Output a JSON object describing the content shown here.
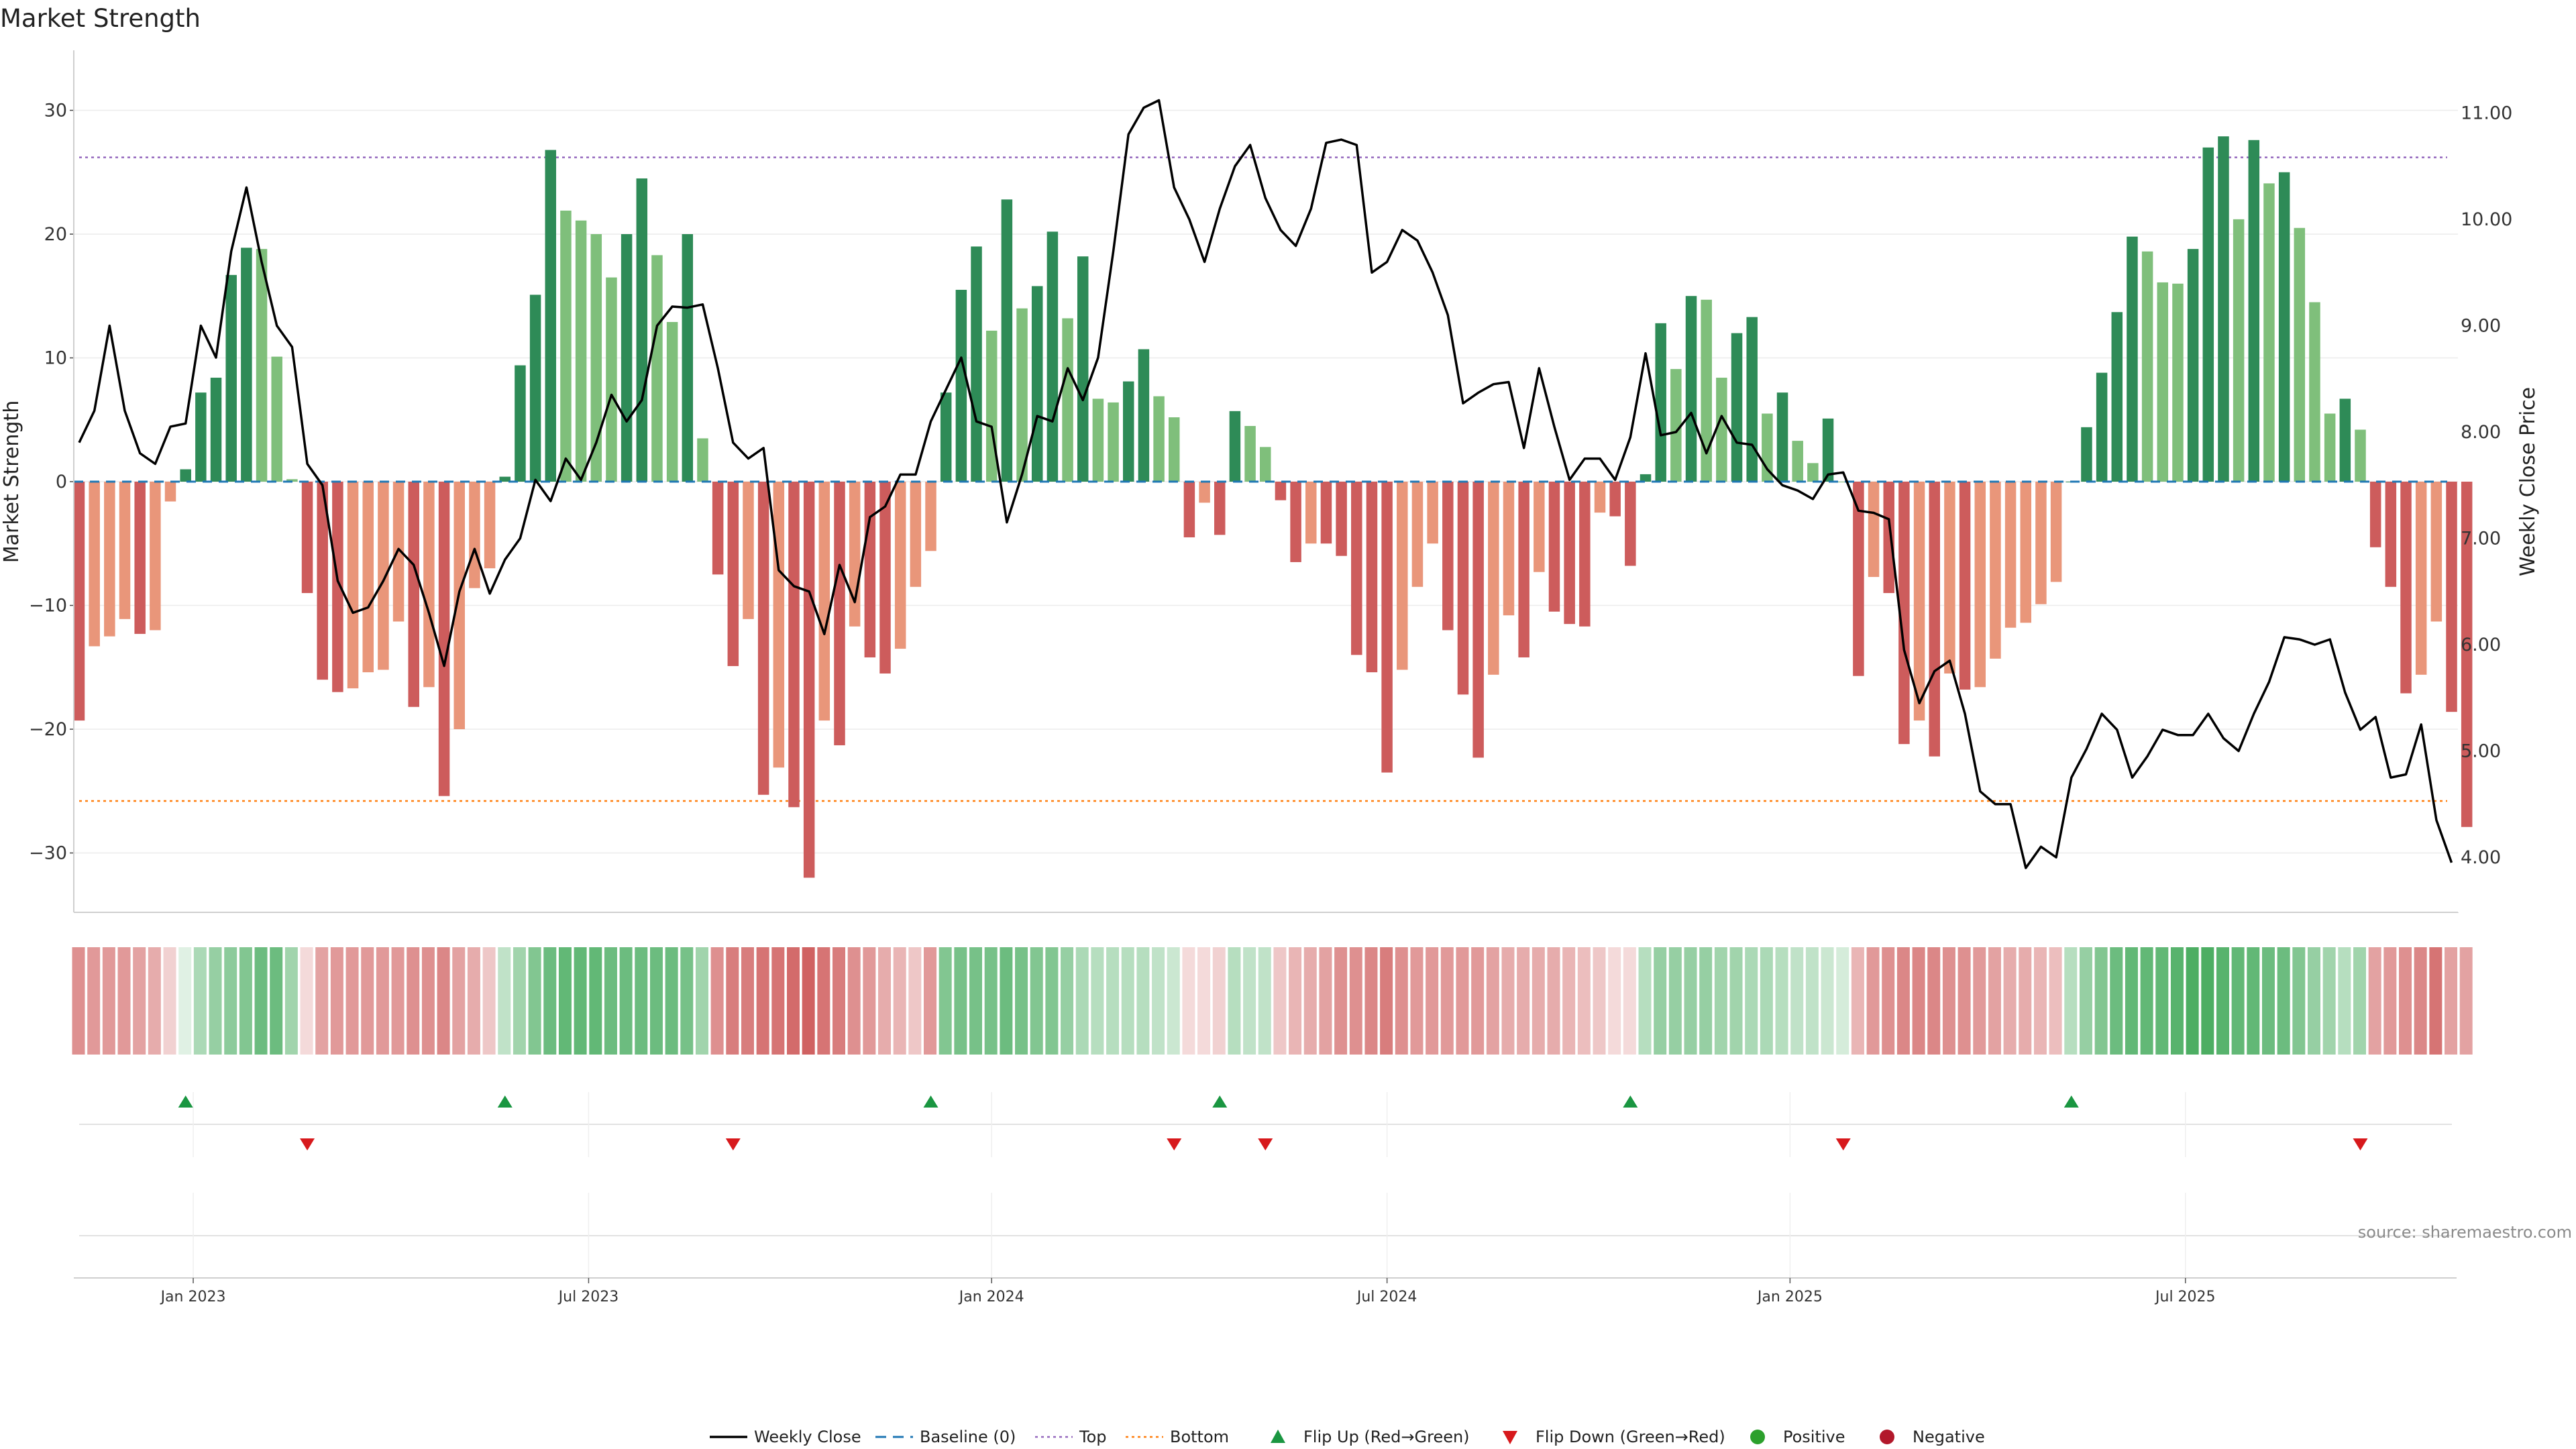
{
  "title": "Market Strength",
  "source": "source: sharemaestro.com",
  "colors": {
    "strong_green": "#2e8b57",
    "light_green": "#7fbf7b",
    "strong_red": "#cd5c5c",
    "light_red": "#e9967a",
    "price_line": "#000000",
    "baseline": "#1f77b4",
    "top": "#9467bd",
    "bottom": "#ff7f0e",
    "flip_up": "#1a9641",
    "flip_down": "#d7191c",
    "positive": "#2ca02c",
    "negative": "#b2182b"
  },
  "chart_data": {
    "type": "bar",
    "title": "Market Strength",
    "ylabel": "Market Strength",
    "y2label": "Weekly Close Price",
    "ylim": [
      -35,
      35
    ],
    "y2lim": [
      3.5,
      11.5
    ],
    "yticks": [
      30,
      20,
      10,
      0,
      -10,
      -20,
      -30
    ],
    "yticklabels": [
      "30",
      "20",
      "10",
      "0",
      "−10",
      "−20",
      "−30"
    ],
    "y2ticks": [
      11,
      10,
      9,
      8,
      7,
      6,
      5,
      4
    ],
    "y2ticklabels": [
      "11.00",
      "10.00",
      "9.00",
      "8.00",
      "7.00",
      "6.00",
      "5.00",
      "4.00"
    ],
    "top_level": 26.2,
    "bottom_level": -25.8,
    "xlabels": [
      {
        "label": "Jan 2023",
        "week": 7.5
      },
      {
        "label": "Jul 2023",
        "week": 33.5
      },
      {
        "label": "Jan 2024",
        "week": 60
      },
      {
        "label": "Jul 2024",
        "week": 86
      },
      {
        "label": "Jan 2025",
        "week": 112.5
      },
      {
        "label": "Jul 2025",
        "week": 138.5
      }
    ],
    "series": [
      {
        "name": "Market Strength",
        "values": [
          -19.3,
          -13.3,
          -12.5,
          -11.1,
          -12.3,
          -12,
          -1.6,
          1,
          7.2,
          8.4,
          16.7,
          18.9,
          18.8,
          10.1,
          0.2,
          -9,
          -16,
          -17,
          -16.7,
          -15.4,
          -15.2,
          -11.3,
          -18.2,
          -16.6,
          -25.4,
          -20,
          -8.6,
          -7,
          0.4,
          9.4,
          15.1,
          26.8,
          21.9,
          21.1,
          20,
          16.5,
          20,
          24.5,
          18.3,
          12.9,
          20,
          3.5,
          -7.5,
          -14.9,
          -11.1,
          -25.3,
          -23.1,
          -26.3,
          -32,
          -19.3,
          -21.3,
          -11.7,
          -14.2,
          -15.5,
          -13.5,
          -8.5,
          -5.6,
          7.2,
          15.5,
          19,
          12.2,
          22.8,
          14,
          15.8,
          20.2,
          13.2,
          18.2,
          6.7,
          6.4,
          8.1,
          10.7,
          6.9,
          5.2,
          -4.5,
          -1.7,
          -4.3,
          5.7,
          4.5,
          2.8,
          -1.5,
          -6.5,
          -5,
          -5,
          -6,
          -14,
          -15.4,
          -23.5,
          -15.2,
          -8.5,
          -5,
          -12,
          -17.2,
          -22.3,
          -15.6,
          -10.8,
          -14.2,
          -7.3,
          -10.5,
          -11.5,
          -11.7,
          -2.5,
          -2.8,
          -6.8,
          0.6,
          12.8,
          9.1,
          15,
          14.7,
          8.4,
          12,
          13.3,
          5.5,
          7.2,
          3.3,
          1.5,
          5.1,
          0,
          -15.7,
          -7.7,
          -9,
          -21.2,
          -19.3,
          -22.2,
          -15.5,
          -16.8,
          -16.6,
          -14.3,
          -11.8,
          -11.4,
          -9.9,
          -8.1,
          0,
          4.4,
          8.8,
          13.7,
          19.8,
          18.6,
          16.1,
          16,
          18.8,
          27,
          27.9,
          21.2,
          27.6,
          24.1,
          25,
          20.5,
          14.5,
          5.5,
          6.7,
          4.2,
          -5.3,
          -8.5,
          -17.1,
          -15.6,
          -11.3,
          -18.6,
          -27.9
        ]
      },
      {
        "name": "Weekly Close",
        "values": [
          7.9,
          8.2,
          9,
          8.2,
          7.8,
          7.7,
          8.05,
          8.08,
          9,
          8.7,
          9.7,
          10.3,
          9.6,
          9,
          8.8,
          7.7,
          7.5,
          6.6,
          6.3,
          6.35,
          6.6,
          6.9,
          6.75,
          6.3,
          5.8,
          6.5,
          6.9,
          6.48,
          6.8,
          7,
          7.55,
          7.35,
          7.75,
          7.55,
          7.9,
          8.35,
          8.1,
          8.3,
          9,
          9.18,
          9.17,
          9.2,
          8.6,
          7.9,
          7.75,
          7.85,
          6.7,
          6.55,
          6.5,
          6.1,
          6.75,
          6.4,
          7.2,
          7.3,
          7.6,
          7.6,
          8.1,
          8.4,
          8.7,
          8.1,
          8.05,
          7.15,
          7.6,
          8.15,
          8.1,
          8.6,
          8.3,
          8.7,
          9.7,
          10.8,
          11.05,
          11.12,
          10.3,
          10,
          9.6,
          10.1,
          10.5,
          10.7,
          10.2,
          9.9,
          9.75,
          10.1,
          10.72,
          10.75,
          10.7,
          9.5,
          9.6,
          9.9,
          9.8,
          9.5,
          9.1,
          8.27,
          8.37,
          8.45,
          8.47,
          7.85,
          8.6,
          8.05,
          7.55,
          7.75,
          7.75,
          7.55,
          7.95,
          8.74,
          7.97,
          8,
          8.18,
          7.8,
          8.15,
          7.9,
          7.88,
          7.65,
          7.5,
          7.45,
          7.37,
          7.6,
          7.62,
          7.26,
          7.24,
          7.18,
          5.95,
          5.45,
          5.75,
          5.85,
          5.35,
          4.62,
          4.5,
          4.5,
          3.9,
          4.1,
          4,
          4.75,
          5.02,
          5.35,
          5.2,
          4.75,
          4.95,
          5.2,
          5.15,
          5.15,
          5.35,
          5.12,
          5,
          5.35,
          5.65,
          6.07,
          6.05,
          6,
          6.05,
          5.55,
          5.2,
          5.32,
          4.75,
          4.78,
          5.25,
          4.35,
          3.95
        ]
      }
    ],
    "color_strip_intensity": [
      0.6,
      0.55,
      0.55,
      0.55,
      0.5,
      0.45,
      0.25,
      0.15,
      0.4,
      0.5,
      0.55,
      0.6,
      0.7,
      0.7,
      0.45,
      0.2,
      0.5,
      0.55,
      0.55,
      0.55,
      0.55,
      0.55,
      0.6,
      0.6,
      0.65,
      0.5,
      0.45,
      0.3,
      0.3,
      0.45,
      0.6,
      0.7,
      0.75,
      0.75,
      0.75,
      0.7,
      0.7,
      0.7,
      0.7,
      0.7,
      0.65,
      0.45,
      0.6,
      0.7,
      0.7,
      0.75,
      0.75,
      0.8,
      0.85,
      0.75,
      0.7,
      0.6,
      0.55,
      0.45,
      0.4,
      0.3,
      0.55,
      0.6,
      0.65,
      0.65,
      0.65,
      0.7,
      0.65,
      0.6,
      0.6,
      0.5,
      0.4,
      0.35,
      0.35,
      0.35,
      0.35,
      0.3,
      0.25,
      0.2,
      0.2,
      0.25,
      0.35,
      0.3,
      0.3,
      0.3,
      0.4,
      0.45,
      0.5,
      0.6,
      0.6,
      0.65,
      0.7,
      0.6,
      0.55,
      0.55,
      0.55,
      0.55,
      0.55,
      0.5,
      0.45,
      0.45,
      0.45,
      0.45,
      0.4,
      0.35,
      0.3,
      0.2,
      0.2,
      0.35,
      0.5,
      0.5,
      0.5,
      0.5,
      0.45,
      0.45,
      0.4,
      0.4,
      0.35,
      0.3,
      0.3,
      0.25,
      0.2,
      0.4,
      0.55,
      0.6,
      0.65,
      0.65,
      0.65,
      0.6,
      0.6,
      0.55,
      0.5,
      0.45,
      0.45,
      0.4,
      0.35,
      0.35,
      0.5,
      0.6,
      0.7,
      0.75,
      0.75,
      0.75,
      0.8,
      0.85,
      0.85,
      0.8,
      0.75,
      0.75,
      0.7,
      0.7,
      0.6,
      0.5,
      0.45,
      0.35,
      0.45,
      0.5,
      0.55,
      0.6,
      0.65,
      0.75
    ],
    "flip_up_weeks": [
      7,
      28,
      56,
      75,
      102,
      131
    ],
    "flip_down_weeks": [
      15,
      43,
      72,
      78,
      116,
      150
    ]
  },
  "legend": [
    {
      "key": "weekly_close",
      "label": "Weekly Close",
      "marker": "line"
    },
    {
      "key": "baseline",
      "label": "Baseline (0)",
      "marker": "dash"
    },
    {
      "key": "top",
      "label": "Top",
      "marker": "dot"
    },
    {
      "key": "bottom",
      "label": "Bottom",
      "marker": "dot"
    },
    {
      "key": "flip_up",
      "label": "Flip Up (Red→Green)",
      "marker": "triangle-up"
    },
    {
      "key": "flip_down",
      "label": "Flip Down (Green→Red)",
      "marker": "triangle-down"
    },
    {
      "key": "positive",
      "label": "Positive",
      "marker": "circle"
    },
    {
      "key": "negative",
      "label": "Negative",
      "marker": "circle"
    }
  ]
}
